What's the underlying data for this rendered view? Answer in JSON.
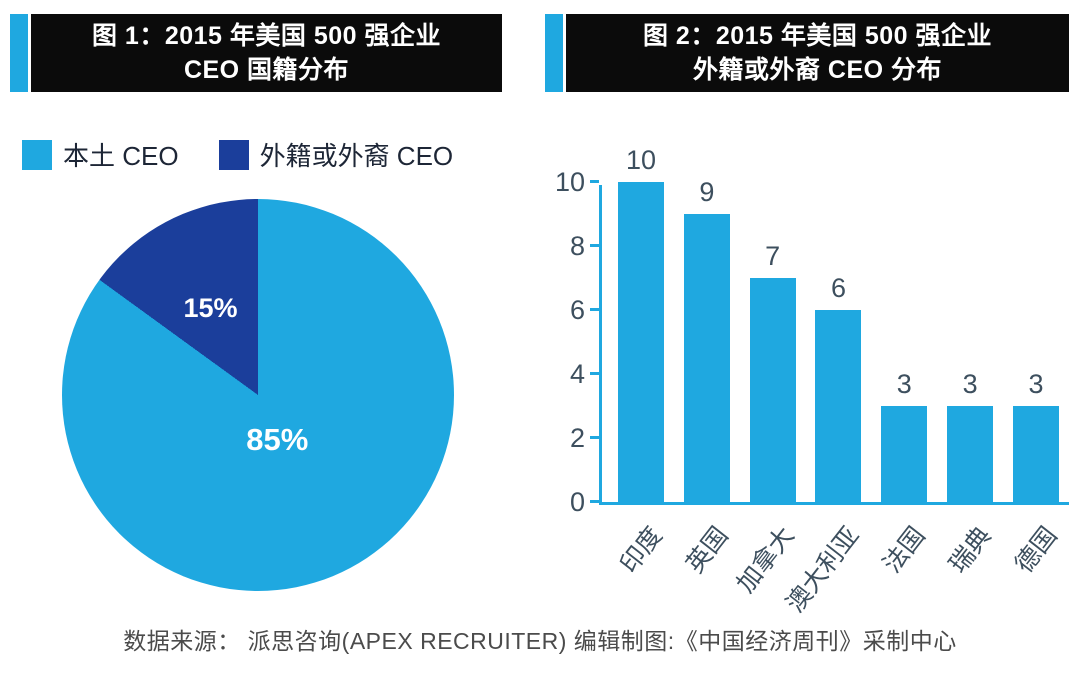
{
  "colors": {
    "cyan": "#1fa8e0",
    "navy": "#1b3e9b",
    "title_bg": "#0b0b0b",
    "title_fg": "#ffffff",
    "axis_text": "#3d4f5e",
    "footer_text": "#4b4b4b"
  },
  "figure1": {
    "title_line1": "图 1：2015 年美国 500 强企业",
    "title_line2": "CEO 国籍分布",
    "legend": [
      {
        "label": "本土 CEO",
        "color": "#1fa8e0"
      },
      {
        "label": "外籍或外裔 CEO",
        "color": "#1b3e9b"
      }
    ]
  },
  "figure2": {
    "title_line1": "图 2：2015 年美国 500 强企业",
    "title_line2": "外籍或外裔 CEO 分布"
  },
  "chart_data": [
    {
      "type": "pie",
      "title": "2015 年美国 500 强企业 CEO 国籍分布",
      "start_angle_deg": 0,
      "direction": "clockwise",
      "slices": [
        {
          "label": "本土 CEO",
          "value": 85,
          "display": "85%",
          "color": "#1fa8e0"
        },
        {
          "label": "外籍或外裔 CEO",
          "value": 15,
          "display": "15%",
          "color": "#1b3e9b"
        }
      ]
    },
    {
      "type": "bar",
      "title": "2015 年美国 500 强企业 外籍或外裔 CEO 分布",
      "categories": [
        "印度",
        "英国",
        "加拿大",
        "澳大利亚",
        "法国",
        "瑞典",
        "德国"
      ],
      "values": [
        10,
        9,
        7,
        6,
        3,
        3,
        3
      ],
      "ylim": [
        0,
        10
      ],
      "yticks": [
        0,
        2,
        4,
        6,
        8,
        10
      ],
      "bar_color": "#1fa8e0",
      "grid": false,
      "value_labels": true,
      "xlabel": "",
      "ylabel": ""
    }
  ],
  "footer": "数据来源： 派思咨询(APEX RECRUITER)  编辑制图:《中国经济周刊》采制中心"
}
